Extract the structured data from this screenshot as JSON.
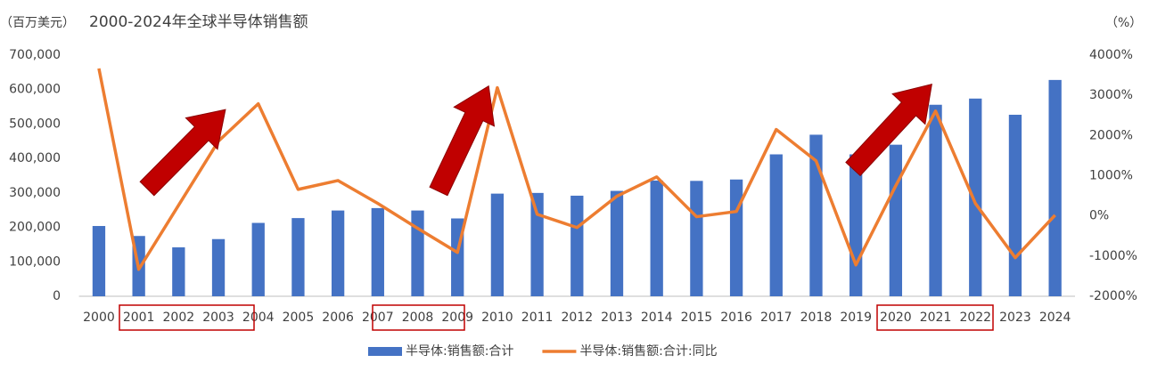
{
  "chart_data": {
    "type": "combo",
    "title": "2000-2024年全球半导体销售额",
    "y_label": "（百万美元）",
    "y2_label": "（%）",
    "categories": [
      "2000",
      "2001",
      "2002",
      "2003",
      "2004",
      "2005",
      "2006",
      "2007",
      "2008",
      "2009",
      "2010",
      "2011",
      "2012",
      "2013",
      "2014",
      "2015",
      "2016",
      "2017",
      "2018",
      "2019",
      "2020",
      "2021",
      "2022",
      "2023",
      "2024"
    ],
    "series": [
      {
        "name": "半导体:销售额:合计",
        "type": "bar",
        "color": "#4472c4",
        "values": [
          204000,
          175000,
          142000,
          166000,
          213000,
          227000,
          249000,
          256000,
          249000,
          226000,
          298000,
          300000,
          292000,
          306000,
          336000,
          335000,
          339000,
          412000,
          469000,
          412000,
          440000,
          556000,
          574000,
          527000,
          628000
        ]
      },
      {
        "name": "半导体:销售额:合计:同比",
        "type": "line",
        "axis": "y2",
        "color": "#ed7d31",
        "values": [
          3670,
          -1330,
          265,
          1860,
          2790,
          660,
          880,
          310,
          -310,
          -910,
          3190,
          40,
          -290,
          490,
          970,
          -20,
          110,
          2150,
          1370,
          -1220,
          750,
          2610,
          310,
          -1040,
          20
        ]
      }
    ],
    "ylim": [
      0,
      700000
    ],
    "yticks": [
      0,
      {
        "value": 100000,
        "label": "100,000"
      },
      {
        "value": 200000,
        "label": "200,000"
      },
      {
        "value": 300000,
        "label": "300,000"
      },
      {
        "value": 400000,
        "label": "400,000"
      },
      {
        "value": 500000,
        "label": "500,000"
      },
      {
        "value": 600000,
        "label": "600,000"
      },
      {
        "value": 700000,
        "label": "700,000"
      }
    ],
    "y2lim": [
      -2000,
      4000
    ],
    "y2ticks": [
      {
        "value": -2000,
        "label": "-2000%"
      },
      {
        "value": -1000,
        "label": "-1000%"
      },
      {
        "value": 0,
        "label": "0%"
      },
      {
        "value": 1000,
        "label": "1000%"
      },
      {
        "value": 2000,
        "label": "2000%"
      },
      {
        "value": 3000,
        "label": "3000%"
      },
      {
        "value": 4000,
        "label": "4000%"
      }
    ],
    "grid": false,
    "legend": "bottom"
  }
}
